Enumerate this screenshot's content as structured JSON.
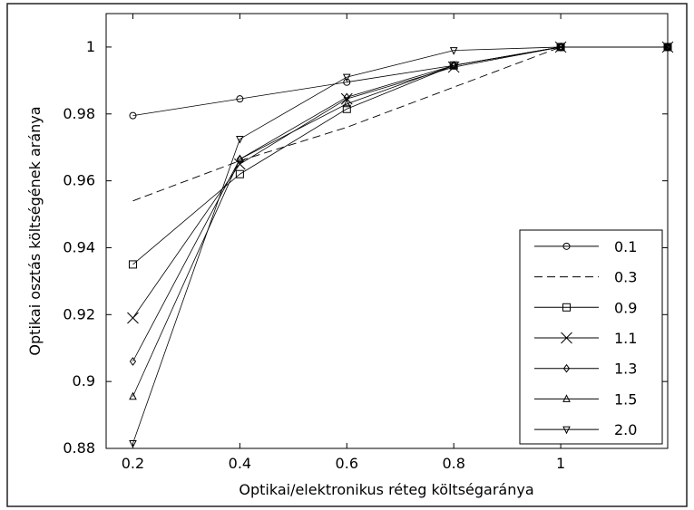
{
  "chart_data": {
    "type": "line",
    "title": "",
    "xlabel": "Optikai/elektronikus réteg költségaránya",
    "ylabel": "Optikai osztás költségének aránya",
    "xlim": [
      0.15,
      1.2
    ],
    "ylim": [
      0.88,
      1.01
    ],
    "grid": false,
    "legend_position": "bottom-right",
    "x_ticks": [
      0.2,
      0.4,
      0.6,
      0.8,
      1.0
    ],
    "x_tick_labels": [
      "0.2",
      "0.4",
      "0.6",
      "0.8",
      "1"
    ],
    "y_ticks": [
      0.88,
      0.9,
      0.92,
      0.94,
      0.96,
      0.98,
      1.0
    ],
    "y_tick_labels": [
      "0.88",
      "0.9",
      "0.92",
      "0.94",
      "0.96",
      "0.98",
      "1"
    ],
    "x": [
      0.2,
      0.4,
      0.6,
      0.8,
      1.0,
      1.2
    ],
    "series": [
      {
        "name": "0.1",
        "marker": "circle",
        "dash": "solid",
        "values": [
          0.9795,
          0.9845,
          0.9895,
          0.9945,
          1.0,
          1.0
        ]
      },
      {
        "name": "0.3",
        "marker": "none",
        "dash": "dashed",
        "values": [
          0.954,
          0.966,
          0.976,
          0.988,
          1.0,
          1.0
        ]
      },
      {
        "name": "0.9",
        "marker": "square",
        "dash": "solid",
        "values": [
          0.935,
          0.962,
          0.9815,
          0.9945,
          1.0,
          1.0
        ]
      },
      {
        "name": "1.1",
        "marker": "x",
        "dash": "solid",
        "values": [
          0.919,
          0.965,
          0.9845,
          0.994,
          1.0,
          1.0
        ]
      },
      {
        "name": "1.3",
        "marker": "diamond",
        "dash": "solid",
        "values": [
          0.906,
          0.9665,
          0.985,
          0.9945,
          1.0,
          1.0
        ]
      },
      {
        "name": "1.5",
        "marker": "triangle-up",
        "dash": "solid",
        "values": [
          0.8955,
          0.9665,
          0.983,
          0.9945,
          1.0,
          1.0
        ]
      },
      {
        "name": "2.0",
        "marker": "triangle-down",
        "dash": "solid",
        "values": [
          0.8815,
          0.9725,
          0.991,
          0.999,
          1.0,
          1.0
        ]
      }
    ]
  }
}
